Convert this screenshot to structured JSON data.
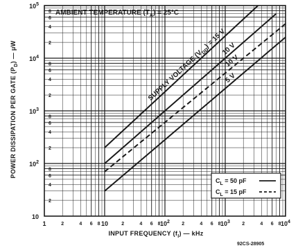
{
  "chart_data": {
    "type": "line",
    "x_scale": "log",
    "y_scale": "log",
    "xlim": [
      1,
      10000
    ],
    "ylim": [
      10,
      100000
    ],
    "xlabel": "INPUT FREQUENCY (f",
    "xlabel_sub": "I",
    "xlabel_unit": ") — kHz",
    "ylabel": "POWER DISSIPATION PER GATE (P",
    "ylabel_sub": "D",
    "ylabel_unit": ") — μW",
    "x_major_ticks": [
      {
        "value": 1,
        "label": "1"
      },
      {
        "value": 10,
        "label": "10"
      },
      {
        "value": 100,
        "label": "10",
        "sup": "2"
      },
      {
        "value": 1000,
        "label": "10",
        "sup": "3"
      },
      {
        "value": 10000,
        "label": "10",
        "sup": "4"
      }
    ],
    "y_major_ticks": [
      {
        "value": 10,
        "label": "10"
      },
      {
        "value": 100,
        "label": "10",
        "sup": "2"
      },
      {
        "value": 1000,
        "label": "10",
        "sup": "3"
      },
      {
        "value": 10000,
        "label": "10",
        "sup": "4"
      },
      {
        "value": 100000,
        "label": "10",
        "sup": "5"
      }
    ],
    "minor_tick_labels": [
      "2",
      "4",
      "6",
      "8"
    ],
    "annotations": {
      "ambient": "AMBIENT TEMPERATURE (T",
      "ambient_sub": "A",
      "ambient_rest": ") = 25°C",
      "supply": "SUPPLY VOLTAGE (V",
      "supply_sub": "DD",
      "supply_rest": ") = 15 V"
    },
    "series": [
      {
        "name": "15 V",
        "load": "50 pF",
        "style": "solid",
        "x": [
          10,
          3500
        ],
        "y": [
          200,
          100000
        ]
      },
      {
        "name": "10 V",
        "load": "50 pF",
        "style": "solid",
        "x": [
          10,
          7000
        ],
        "y": [
          100,
          70000
        ]
      },
      {
        "name": "10 V",
        "load": "15 pF",
        "style": "dashed",
        "x": [
          10,
          10000
        ],
        "y": [
          70,
          45000
        ]
      },
      {
        "name": "5 V",
        "load": "50 pF",
        "style": "solid",
        "x": [
          10,
          10000
        ],
        "y": [
          30,
          25000
        ]
      }
    ],
    "series_labels": [
      {
        "text": "10 V"
      },
      {
        "text": "10 V"
      },
      {
        "text": "5 V"
      }
    ],
    "legend": {
      "placement": "bottom-right",
      "entries": [
        {
          "label": "C",
          "sub": "L",
          "rest": " = 50 pF",
          "style": "solid"
        },
        {
          "label": "C",
          "sub": "L",
          "rest": " = 15 pF",
          "style": "dashed"
        }
      ]
    },
    "footer_code": "92CS-28905",
    "grid": true,
    "colors": {
      "ink": "#1a1a1a",
      "background": "#ffffff"
    }
  }
}
